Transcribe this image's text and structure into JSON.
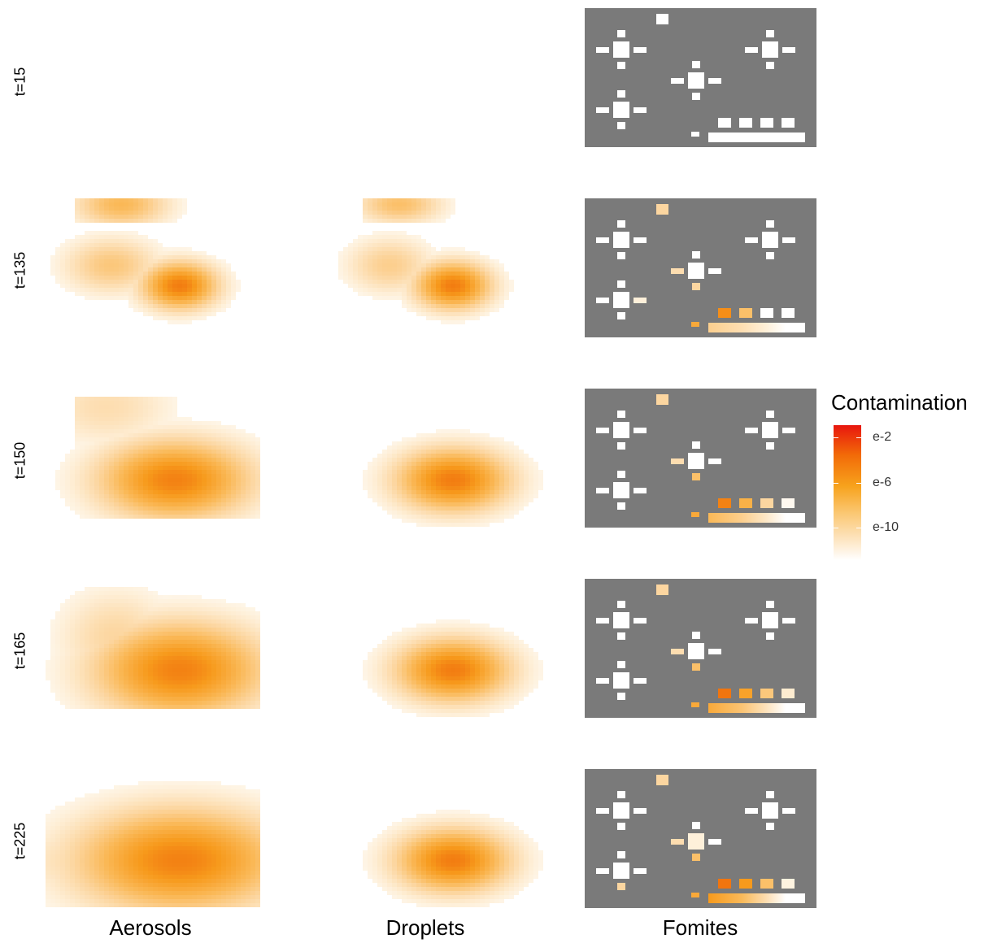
{
  "chart_data": {
    "type": "heatmap",
    "title": "",
    "columns": [
      "Aerosols",
      "Droplets",
      "Fomites"
    ],
    "rows": [
      "t=15",
      "t=135",
      "t=150",
      "t=165",
      "t=225"
    ],
    "legend": {
      "title": "Contamination",
      "ticks": [
        "e-2",
        "e-6",
        "e-10"
      ],
      "placement": "right"
    },
    "colors": {
      "high": "#e8160e",
      "mid": "#f7a21c",
      "low": "#fde5c2",
      "none": "#ffffff",
      "fomite_background": "#7a7a7a",
      "fomite_surface": "#ffffff"
    },
    "panels": [
      {
        "time": "t=15",
        "aerosols": {
          "clouds": []
        },
        "droplets": {
          "clouds": []
        },
        "fomites": {
          "contaminated_surfaces": 0,
          "counter_contamination": [
            0,
            0,
            0,
            0
          ],
          "table_contamination": 0
        }
      },
      {
        "time": "t=135",
        "aerosols": {
          "peak_log10": -5,
          "clouds": [
            "upper",
            "middle",
            "lower-right (peak)"
          ]
        },
        "droplets": {
          "peak_log10": -5,
          "clouds": [
            "upper",
            "middle",
            "lower-right (peak)"
          ]
        },
        "fomites": {
          "contaminated_surfaces": 5,
          "counter_contamination": [
            0.75,
            0.45,
            0,
            0
          ],
          "table_contamination": 0.35
        }
      },
      {
        "time": "t=150",
        "aerosols": {
          "peak_log10": -5,
          "clouds": [
            "upper",
            "lower-right (peak)"
          ]
        },
        "droplets": {
          "peak_log10": -5,
          "clouds": [
            "center (peak)"
          ]
        },
        "fomites": {
          "contaminated_surfaces": 6,
          "counter_contamination": [
            0.8,
            0.55,
            0.3,
            0.05
          ],
          "table_contamination": 0.5
        }
      },
      {
        "time": "t=165",
        "aerosols": {
          "peak_log10": -5,
          "clouds": [
            "broad (peak right)"
          ]
        },
        "droplets": {
          "peak_log10": -5,
          "clouds": [
            "center (peak)"
          ]
        },
        "fomites": {
          "contaminated_surfaces": 6,
          "counter_contamination": [
            0.85,
            0.65,
            0.4,
            0.15
          ],
          "table_contamination": 0.6
        }
      },
      {
        "time": "t=225",
        "aerosols": {
          "peak_log10": -5,
          "clouds": [
            "full width (peak right)"
          ]
        },
        "droplets": {
          "peak_log10": -5,
          "clouds": [
            "center (peak)"
          ]
        },
        "fomites": {
          "contaminated_surfaces": 7,
          "counter_contamination": [
            0.85,
            0.7,
            0.45,
            0.1
          ],
          "table_contamination": 0.7
        }
      }
    ]
  }
}
